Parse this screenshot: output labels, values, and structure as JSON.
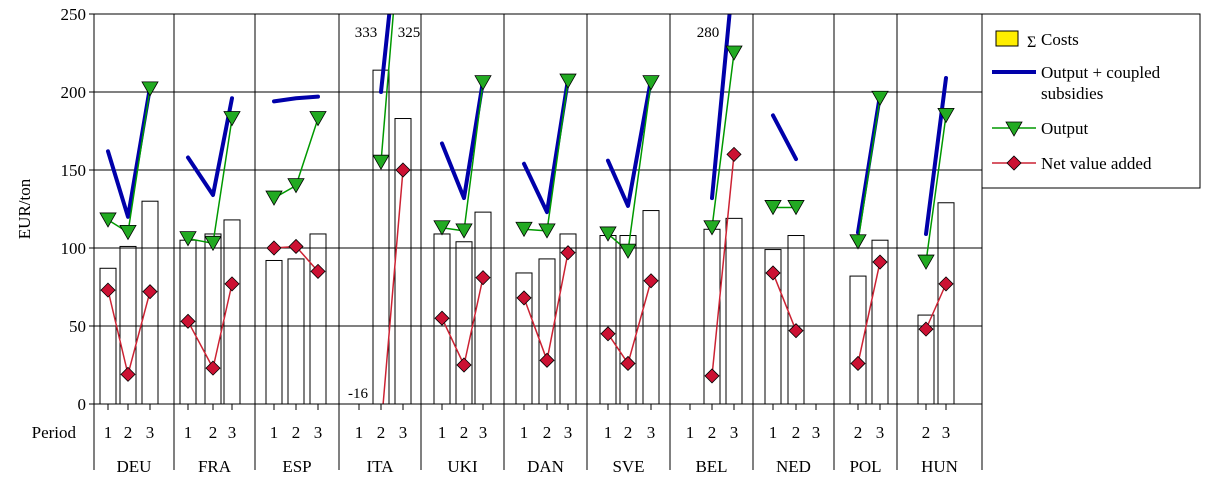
{
  "chart_data": {
    "type": "bar",
    "ylabel": "EUR/ton",
    "ylim": [
      0,
      250
    ],
    "yticks": [
      0,
      50,
      100,
      150,
      200,
      250
    ],
    "grid": true,
    "period_label": "Period",
    "legend_position": "right",
    "legend": {
      "costs": "Costs",
      "costs_symbol": "Σ",
      "output_coupled": "Output + coupled subsidies",
      "output": "Output",
      "nva": "Net value added"
    },
    "colors": {
      "bar_fill": "#ffffff",
      "legend_costs_fill": "#ffee00",
      "output_coupled_line": "#0000aa",
      "output_line": "#009900",
      "output_marker": "#22aa22",
      "nva_line": "#cc2233",
      "nva_marker": "#cc1133"
    },
    "countries": [
      {
        "name": "DEU",
        "periods": [
          "1",
          "2",
          "3"
        ],
        "costs": [
          87,
          101,
          130
        ],
        "output_coupled": [
          162,
          120,
          203
        ],
        "output": [
          118,
          110,
          202
        ],
        "nva": [
          73,
          19,
          72
        ]
      },
      {
        "name": "FRA",
        "periods": [
          "1",
          "2",
          "3"
        ],
        "costs": [
          105,
          109,
          118
        ],
        "output_coupled": [
          158,
          134,
          196
        ],
        "output": [
          106,
          103,
          183
        ],
        "nva": [
          53,
          23,
          77
        ]
      },
      {
        "name": "ESP",
        "periods": [
          "1",
          "2",
          "3"
        ],
        "costs": [
          92,
          93,
          109
        ],
        "output_coupled": [
          194,
          196,
          197
        ],
        "output": [
          132,
          140,
          183
        ],
        "nva": [
          100,
          101,
          85
        ]
      },
      {
        "name": "ITA",
        "periods": [
          "1",
          "2",
          "3"
        ],
        "costs": [
          null,
          214,
          183
        ],
        "output_coupled": [
          null,
          200,
          333
        ],
        "output": [
          null,
          155,
          325
        ],
        "nva": [
          null,
          -16,
          150
        ],
        "annotations": [
          "333",
          "325",
          "-16"
        ]
      },
      {
        "name": "UKI",
        "periods": [
          "1",
          "2",
          "3"
        ],
        "costs": [
          109,
          104,
          123
        ],
        "output_coupled": [
          167,
          132,
          207
        ],
        "output": [
          113,
          111,
          206
        ],
        "nva": [
          55,
          25,
          81
        ]
      },
      {
        "name": "DAN",
        "periods": [
          "1",
          "2",
          "3"
        ],
        "costs": [
          84,
          93,
          109
        ],
        "output_coupled": [
          154,
          123,
          208
        ],
        "output": [
          112,
          111,
          207
        ],
        "nva": [
          68,
          28,
          97
        ]
      },
      {
        "name": "SVE",
        "periods": [
          "1",
          "2",
          "3"
        ],
        "costs": [
          108,
          108,
          124
        ],
        "output_coupled": [
          156,
          127,
          208
        ],
        "output": [
          109,
          98,
          206
        ],
        "nva": [
          45,
          26,
          79
        ]
      },
      {
        "name": "BEL",
        "periods": [
          "1",
          "2",
          "3"
        ],
        "costs": [
          null,
          112,
          119
        ],
        "output_coupled": [
          null,
          132,
          280
        ],
        "output": [
          null,
          113,
          225
        ],
        "nva": [
          null,
          18,
          160
        ],
        "annotations": [
          "280"
        ]
      },
      {
        "name": "NED",
        "periods": [
          "1",
          "2",
          "3"
        ],
        "costs": [
          99,
          108,
          null
        ],
        "output_coupled": [
          185,
          157,
          null
        ],
        "output": [
          126,
          126,
          null
        ],
        "nva": [
          84,
          47,
          null
        ]
      },
      {
        "name": "POL",
        "periods": [
          "2",
          "3"
        ],
        "costs": [
          82,
          105
        ],
        "output_coupled": [
          110,
          198
        ],
        "output": [
          104,
          196
        ],
        "nva": [
          26,
          91
        ]
      },
      {
        "name": "HUN",
        "periods": [
          "2",
          "3"
        ],
        "costs": [
          57,
          129
        ],
        "output_coupled": [
          109,
          209
        ],
        "output": [
          91,
          185
        ],
        "nva": [
          48,
          77
        ]
      }
    ]
  }
}
